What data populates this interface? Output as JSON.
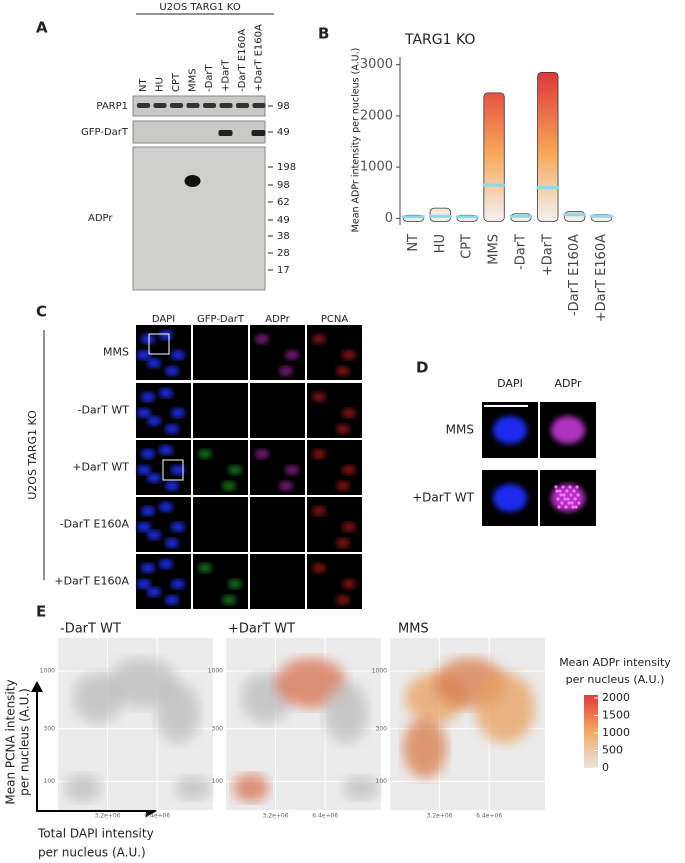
{
  "panels": {
    "a": {
      "label": "A",
      "header": "U2OS TARG1 KO",
      "lanes": [
        "NT",
        "HU",
        "CPT",
        "MMS",
        "-DarT",
        "+DarT",
        "-DarT E160A",
        "+DarT E160A"
      ],
      "blots": [
        {
          "name": "PARP1",
          "markers": [
            98
          ]
        },
        {
          "name": "GFP-DarT",
          "markers": [
            49
          ]
        },
        {
          "name": "ADPr",
          "markers": [
            198,
            98,
            62,
            49,
            38,
            28,
            17
          ]
        }
      ]
    },
    "b": {
      "label": "B"
    },
    "c": {
      "label": "C",
      "columns": [
        "DAPI",
        "GFP-DarT",
        "ADPr",
        "PCNA"
      ],
      "rows": [
        "MMS",
        "-DarT WT",
        "+DarT WT",
        "-DarT E160A",
        "+DarT E160A"
      ],
      "side_label": "U2OS TARG1 KO"
    },
    "d": {
      "label": "D",
      "columns": [
        "DAPI",
        "ADPr"
      ],
      "rows": [
        "MMS",
        "+DarT WT"
      ]
    },
    "e": {
      "label": "E",
      "plots": [
        "-DarT WT",
        "+DarT WT",
        "MMS"
      ],
      "y_label": [
        "Mean PCNA intensity",
        "per nucleus (A.U.)"
      ],
      "x_label": [
        "Total DAPI intensity",
        "per nucleus (A.U.)"
      ],
      "xlim": [
        0,
        10000000
      ],
      "xticks": [
        {
          "value": 3200000,
          "label": "3.2e+06"
        },
        {
          "value": 6400000,
          "label": "6.4e+06"
        }
      ],
      "ylim": [
        55,
        2000
      ],
      "log_y": true,
      "yticks": [
        100,
        300,
        1000
      ],
      "legend_title": [
        "Mean ADPr intensity",
        "per nucleus (A.U.)"
      ],
      "legend_ticks": [
        2000,
        1500,
        1000,
        500,
        0
      ],
      "legend_colors": [
        "#e8e4e0",
        "#f6a860",
        "#e23b3b"
      ]
    }
  },
  "chart_data": {
    "type": "strip",
    "title": "TARG1 KO",
    "y_label": "Mean ADPr intensity per nucleus (A.U.)",
    "categories": [
      "NT",
      "HU",
      "CPT",
      "MMS",
      "-DarT",
      "+DarT",
      "-DarT E160A",
      "+DarT E160A"
    ],
    "values": [
      30,
      40,
      30,
      650,
      40,
      600,
      70,
      40
    ],
    "max": [
      60,
      200,
      60,
      2450,
      90,
      2850,
      130,
      70
    ],
    "median_color": "#8fd8ea",
    "point_colors": [
      "#f2efea",
      "#f7a85a",
      "#e03a3a"
    ],
    "ylim": [
      -130,
      3150
    ],
    "yticks": [
      0,
      1000,
      2000,
      3000
    ]
  }
}
